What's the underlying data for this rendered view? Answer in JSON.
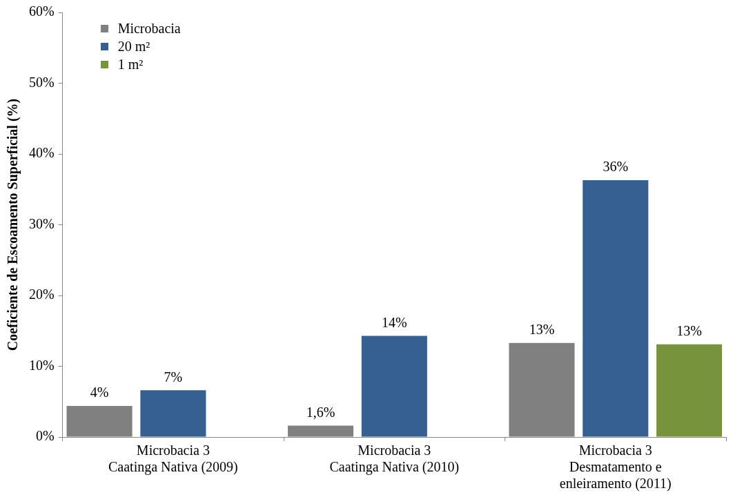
{
  "chart_data": {
    "type": "bar",
    "ylabel": "Coeficiente de Escoamento Superficial (%)",
    "categories": [
      "Microbacia 3\nCaatinga Nativa (2009)",
      "Microbacia 3\nCaatinga Nativa (2010)",
      "Microbacia 3\nDesmatamento e\nenleiramento (2011)"
    ],
    "series": [
      {
        "name": "Microbacia",
        "color": "#808080",
        "values": [
          4.4,
          1.6,
          13.3
        ],
        "value_labels": [
          "4%",
          "1,6%",
          "13%"
        ]
      },
      {
        "name": "20 m²",
        "color": "#376092",
        "values": [
          6.6,
          14.3,
          36.3
        ],
        "value_labels": [
          "7%",
          "14%",
          "36%"
        ]
      },
      {
        "name": "1 m²",
        "color": "#77933c",
        "values": [
          null,
          null,
          13.1
        ],
        "value_labels": [
          null,
          null,
          "13%"
        ]
      }
    ],
    "ylim": [
      0,
      60
    ],
    "yticks": [
      {
        "value": 0,
        "label": "0%"
      },
      {
        "value": 10,
        "label": "10%"
      },
      {
        "value": 20,
        "label": "20%"
      },
      {
        "value": 30,
        "label": "30%"
      },
      {
        "value": 40,
        "label": "40%"
      },
      {
        "value": 50,
        "label": "50%"
      },
      {
        "value": 60,
        "label": "60%"
      }
    ],
    "grid": false,
    "legend": "top left"
  }
}
